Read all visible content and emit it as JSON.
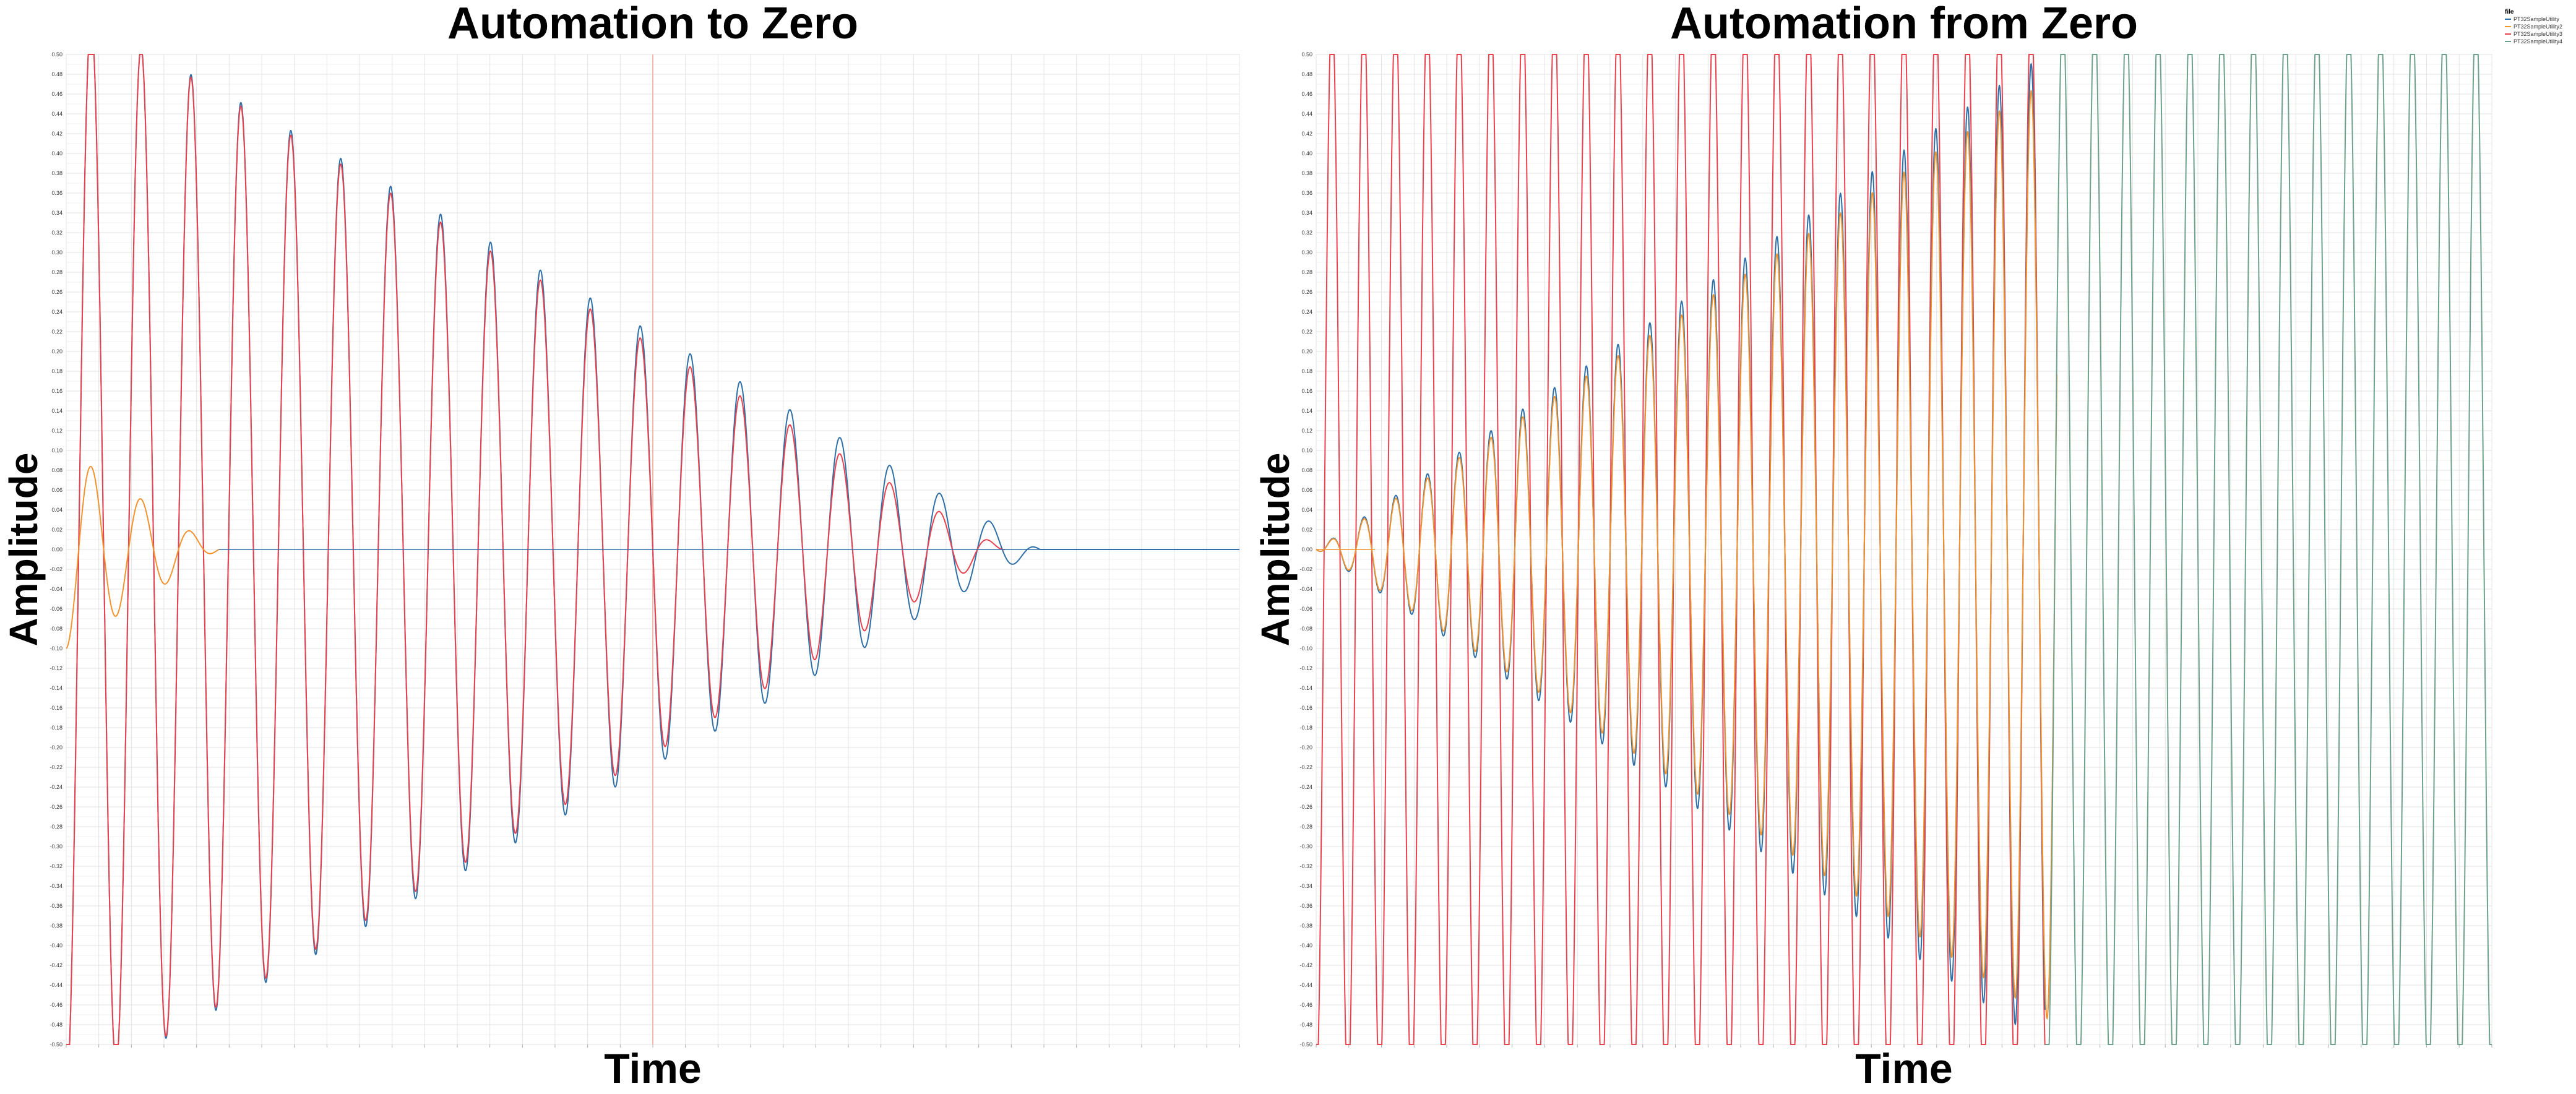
{
  "chart_data": [
    {
      "type": "line",
      "title": "Automation to Zero",
      "xlabel": "Time",
      "ylabel": "Amplitude",
      "ylim": [
        -0.5,
        0.5
      ],
      "y_ticks": [
        "-0.50",
        "-0.48",
        "-0.46",
        "-0.44",
        "-0.42",
        "-0.40",
        "-0.38",
        "-0.36",
        "-0.34",
        "-0.32",
        "-0.30",
        "-0.28",
        "-0.26",
        "-0.24",
        "-0.22",
        "-0.20",
        "-0.18",
        "-0.16",
        "-0.14",
        "-0.12",
        "-0.10",
        "-0.08",
        "-0.06",
        "-0.04",
        "-0.02",
        "0.00",
        "0.02",
        "0.04",
        "0.06",
        "0.08",
        "0.10",
        "0.12",
        "0.14",
        "0.16",
        "0.18",
        "0.20",
        "0.22",
        "0.24",
        "0.26",
        "0.28",
        "0.30",
        "0.32",
        "0.34",
        "0.36",
        "0.38",
        "0.40",
        "0.42",
        "0.44",
        "0.46",
        "0.48",
        "0.50"
      ],
      "grid": true,
      "vline_at_fraction": 0.5,
      "vline_color": "#f2b8a8",
      "series": [
        {
          "color": "#2e6ea6",
          "description": "decaying sine",
          "cycles": 23.5,
          "amp_start": 0.55,
          "decay_end_fraction": 0.83,
          "tail_wiggle": true
        },
        {
          "color": "#e8424f",
          "description": "decaying sine clipped",
          "cycles": 23.5,
          "amp_start": 0.55,
          "decay_end_fraction": 0.8
        },
        {
          "color": "#f2922e",
          "description": "small damped ringing",
          "cycles": 23.5,
          "amp_start": 0.1,
          "decay_end_fraction": 0.13
        }
      ]
    },
    {
      "type": "line",
      "title": "Automation from Zero",
      "xlabel": "Time",
      "ylabel": "Amplitude",
      "ylim": [
        -0.5,
        0.5
      ],
      "y_ticks": [
        "-0.50",
        "-0.48",
        "-0.46",
        "-0.44",
        "-0.42",
        "-0.40",
        "-0.38",
        "-0.36",
        "-0.34",
        "-0.32",
        "-0.30",
        "-0.28",
        "-0.26",
        "-0.24",
        "-0.22",
        "-0.20",
        "-0.18",
        "-0.16",
        "-0.14",
        "-0.12",
        "-0.10",
        "-0.08",
        "-0.06",
        "-0.04",
        "-0.02",
        "0.00",
        "0.02",
        "0.04",
        "0.06",
        "0.08",
        "0.10",
        "0.12",
        "0.14",
        "0.16",
        "0.18",
        "0.20",
        "0.22",
        "0.24",
        "0.26",
        "0.28",
        "0.30",
        "0.32",
        "0.34",
        "0.36",
        "0.38",
        "0.40",
        "0.42",
        "0.44",
        "0.46",
        "0.48",
        "0.50"
      ],
      "grid": true,
      "legend": {
        "title": "file",
        "position": "top-right",
        "entries": [
          {
            "name": "PT32SampleUtility",
            "color": "#2e6ea6"
          },
          {
            "name": "PT32SampleUtility2",
            "color": "#f2922e"
          },
          {
            "name": "PT32SampleUtility3",
            "color": "#e8424f"
          },
          {
            "name": "PT32SampleUtility4",
            "color": "#6fa08c"
          }
        ]
      },
      "series": [
        {
          "color": "#e8424f",
          "description": "full amplitude sine, stops",
          "cycles": 37,
          "stop_fraction": 0.62
        },
        {
          "color": "#2e6ea6",
          "description": "growing sine",
          "cycles": 37,
          "stop_fraction": 0.62
        },
        {
          "color": "#f2922e",
          "description": "growing sine smaller",
          "cycles": 37,
          "stop_fraction": 0.63
        },
        {
          "color": "#6fa08c",
          "description": "full amplitude sine continuing",
          "cycles": 37,
          "start_fraction": 0.62
        }
      ]
    }
  ],
  "colors": {
    "background": "#ffffff",
    "grid": "#e3e3e3",
    "axis": "#aaaaaa"
  }
}
